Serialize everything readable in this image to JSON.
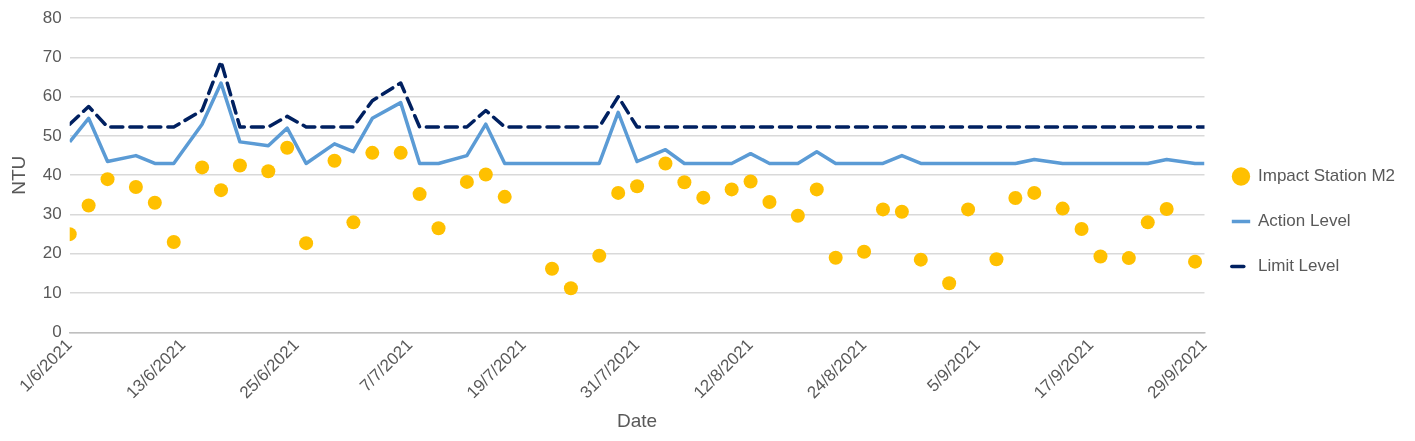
{
  "chart_data": {
    "type": "scatter",
    "xlabel": "Date",
    "ylabel": "NTU",
    "ylim": [
      0,
      80
    ],
    "yticks": [
      0,
      10,
      20,
      30,
      40,
      50,
      60,
      70,
      80
    ],
    "xlim": [
      "2021-06-01",
      "2021-09-29"
    ],
    "xticks": [
      {
        "value": "2021-06-01",
        "label": "1/6/2021"
      },
      {
        "value": "2021-06-13",
        "label": "13/6/2021"
      },
      {
        "value": "2021-06-25",
        "label": "25/6/2021"
      },
      {
        "value": "2021-07-07",
        "label": "7/7/2021"
      },
      {
        "value": "2021-07-19",
        "label": "19/7/2021"
      },
      {
        "value": "2021-07-31",
        "label": "31/7/2021"
      },
      {
        "value": "2021-08-12",
        "label": "12/8/2021"
      },
      {
        "value": "2021-08-24",
        "label": "24/8/2021"
      },
      {
        "value": "2021-09-05",
        "label": "5/9/2021"
      },
      {
        "value": "2021-09-17",
        "label": "17/9/2021"
      },
      {
        "value": "2021-09-29",
        "label": "29/9/2021"
      }
    ],
    "grid": "y",
    "legend": "right",
    "series": [
      {
        "name": "Impact Station M2",
        "marker": "circle",
        "color": "#ffc000",
        "x": [
          "2021-06-01",
          "2021-06-03",
          "2021-06-05",
          "2021-06-08",
          "2021-06-10",
          "2021-06-12",
          "2021-06-15",
          "2021-06-17",
          "2021-06-19",
          "2021-06-22",
          "2021-06-24",
          "2021-06-26",
          "2021-06-29",
          "2021-07-01",
          "2021-07-03",
          "2021-07-06",
          "2021-07-08",
          "2021-07-10",
          "2021-07-13",
          "2021-07-15",
          "2021-07-17",
          "2021-07-22",
          "2021-07-24",
          "2021-07-27",
          "2021-07-29",
          "2021-07-31",
          "2021-08-03",
          "2021-08-05",
          "2021-08-07",
          "2021-08-10",
          "2021-08-12",
          "2021-08-14",
          "2021-08-17",
          "2021-08-19",
          "2021-08-21",
          "2021-08-24",
          "2021-08-26",
          "2021-08-28",
          "2021-08-30",
          "2021-09-02",
          "2021-09-04",
          "2021-09-07",
          "2021-09-09",
          "2021-09-11",
          "2021-09-14",
          "2021-09-16",
          "2021-09-18",
          "2021-09-21",
          "2021-09-23",
          "2021-09-25",
          "2021-09-28"
        ],
        "values": [
          25,
          32.3,
          39,
          37,
          33,
          23,
          42,
          36.2,
          42.5,
          41,
          47,
          22.7,
          43.7,
          28,
          45.7,
          45.7,
          35.2,
          26.5,
          38.3,
          40.2,
          34.5,
          16.2,
          11.2,
          19.5,
          35.5,
          37.2,
          43,
          38.2,
          34.3,
          36.4,
          38.4,
          33.2,
          29.7,
          36.4,
          19,
          20.5,
          31.3,
          30.7,
          18.5,
          12.5,
          31.3,
          18.6,
          34.2,
          35.5,
          31.5,
          26.3,
          19.3,
          18.9,
          28,
          31.4,
          18
        ]
      },
      {
        "name": "Action Level",
        "type": "line",
        "marker": "none",
        "line_style": "solid",
        "color": "#5b9bd5",
        "x": [
          "2021-06-01",
          "2021-06-03",
          "2021-06-05",
          "2021-06-08",
          "2021-06-10",
          "2021-06-12",
          "2021-06-15",
          "2021-06-17",
          "2021-06-19",
          "2021-06-22",
          "2021-06-24",
          "2021-06-26",
          "2021-06-29",
          "2021-07-01",
          "2021-07-03",
          "2021-07-06",
          "2021-07-08",
          "2021-07-10",
          "2021-07-13",
          "2021-07-15",
          "2021-07-17",
          "2021-07-22",
          "2021-07-24",
          "2021-07-27",
          "2021-07-29",
          "2021-07-31",
          "2021-08-03",
          "2021-08-05",
          "2021-08-07",
          "2021-08-10",
          "2021-08-12",
          "2021-08-14",
          "2021-08-17",
          "2021-08-19",
          "2021-08-21",
          "2021-08-24",
          "2021-08-26",
          "2021-08-28",
          "2021-08-30",
          "2021-09-02",
          "2021-09-04",
          "2021-09-07",
          "2021-09-09",
          "2021-09-11",
          "2021-09-14",
          "2021-09-16",
          "2021-09-18",
          "2021-09-21",
          "2021-09-23",
          "2021-09-25",
          "2021-09-28",
          "2021-09-29"
        ],
        "values": [
          48.5,
          54.5,
          43.5,
          45,
          43,
          43,
          53,
          63.5,
          48.5,
          47.5,
          52,
          43,
          48,
          46,
          54.5,
          58.5,
          43,
          43,
          45,
          53,
          43,
          43,
          43,
          43,
          56,
          43.5,
          46.5,
          43,
          43,
          43,
          45.5,
          43,
          43,
          46,
          43,
          43,
          43,
          45,
          43,
          43,
          43,
          43,
          43,
          44,
          43,
          43,
          43,
          43,
          43,
          44,
          43,
          43
        ]
      },
      {
        "name": "Limit Level",
        "type": "line",
        "marker": "none",
        "line_style": "dashed",
        "color": "#002060",
        "x": [
          "2021-06-01",
          "2021-06-03",
          "2021-06-05",
          "2021-06-08",
          "2021-06-10",
          "2021-06-12",
          "2021-06-15",
          "2021-06-17",
          "2021-06-19",
          "2021-06-22",
          "2021-06-24",
          "2021-06-26",
          "2021-06-29",
          "2021-07-01",
          "2021-07-03",
          "2021-07-06",
          "2021-07-08",
          "2021-07-10",
          "2021-07-13",
          "2021-07-15",
          "2021-07-17",
          "2021-07-22",
          "2021-07-24",
          "2021-07-27",
          "2021-07-29",
          "2021-07-31",
          "2021-08-03",
          "2021-08-05",
          "2021-08-07",
          "2021-08-10",
          "2021-08-12",
          "2021-08-14",
          "2021-08-17",
          "2021-08-19",
          "2021-08-21",
          "2021-08-24",
          "2021-08-26",
          "2021-08-28",
          "2021-08-30",
          "2021-09-02",
          "2021-09-04",
          "2021-09-07",
          "2021-09-09",
          "2021-09-11",
          "2021-09-14",
          "2021-09-16",
          "2021-09-18",
          "2021-09-21",
          "2021-09-23",
          "2021-09-25",
          "2021-09-28",
          "2021-09-29"
        ],
        "values": [
          53,
          57.5,
          52.3,
          52.3,
          52.3,
          52.3,
          56.5,
          69,
          52.3,
          52.3,
          55,
          52.3,
          52.3,
          52.3,
          59,
          63.5,
          52.3,
          52.3,
          52.3,
          56.5,
          52.3,
          52.3,
          52.3,
          52.3,
          60,
          52.3,
          52.3,
          52.3,
          52.3,
          52.3,
          52.3,
          52.3,
          52.3,
          52.3,
          52.3,
          52.3,
          52.3,
          52.3,
          52.3,
          52.3,
          52.3,
          52.3,
          52.3,
          52.3,
          52.3,
          52.3,
          52.3,
          52.3,
          52.3,
          52.3,
          52.3,
          52.3
        ]
      }
    ]
  }
}
